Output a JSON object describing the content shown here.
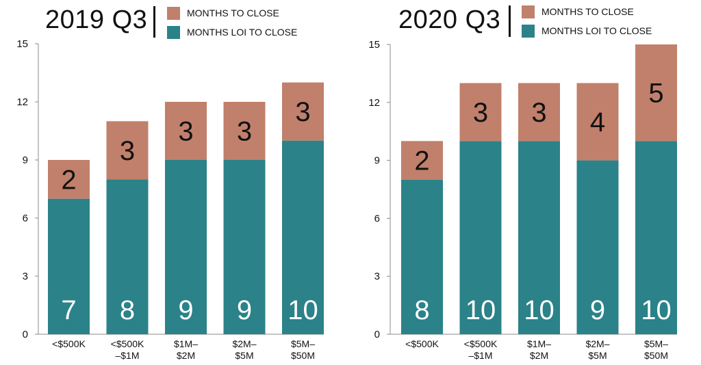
{
  "colors": {
    "loi": "#2b8289",
    "close": "#c0806b",
    "axis": "#888888"
  },
  "chart_data": [
    {
      "type": "bar",
      "stacked": true,
      "title": "2019 Q3",
      "categories": [
        [
          "<$500K"
        ],
        [
          "<$500K",
          "–$1M"
        ],
        [
          "$1M–",
          "$2M"
        ],
        [
          "$2M–",
          "$5M"
        ],
        [
          "$5M–",
          "$50M"
        ]
      ],
      "series": [
        {
          "name": "MONTHS LOI TO CLOSE",
          "key": "loi",
          "values": [
            7,
            8,
            9,
            9,
            10
          ]
        },
        {
          "name": "MONTHS TO CLOSE",
          "key": "close",
          "values": [
            2,
            3,
            3,
            3,
            3
          ]
        }
      ],
      "yticks": [
        0,
        3,
        6,
        9,
        12,
        15
      ],
      "ylim": [
        0,
        15
      ],
      "legend_order": [
        "close",
        "loi"
      ]
    },
    {
      "type": "bar",
      "stacked": true,
      "title": "2020 Q3",
      "categories": [
        [
          "<$500K"
        ],
        [
          "<$500K",
          "–$1M"
        ],
        [
          "$1M–",
          "$2M"
        ],
        [
          "$2M–",
          "$5M"
        ],
        [
          "$5M–",
          "$50M"
        ]
      ],
      "series": [
        {
          "name": "MONTHS LOI TO CLOSE",
          "key": "loi",
          "values": [
            8,
            10,
            10,
            9,
            10
          ]
        },
        {
          "name": "MONTHS TO CLOSE",
          "key": "close",
          "values": [
            2,
            3,
            3,
            4,
            5
          ]
        }
      ],
      "yticks": [
        0,
        3,
        6,
        9,
        12,
        15
      ],
      "ylim": [
        0,
        15
      ],
      "legend_order": [
        "close",
        "loi"
      ]
    }
  ]
}
